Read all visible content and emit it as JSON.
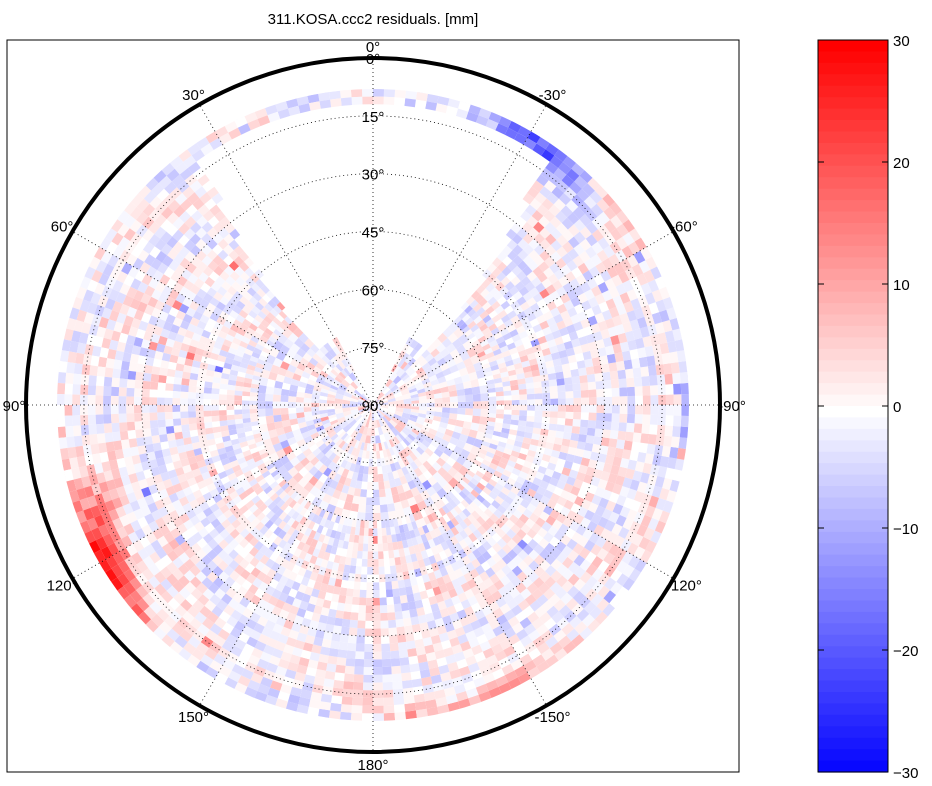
{
  "chart_data": {
    "type": "heatmap",
    "projection": "polar-skyplot",
    "title": "311.KOSA.ccc2 residuals. [mm]",
    "angular_axis": {
      "labels": [
        "0°",
        "30°",
        "60°",
        "90°",
        "120°",
        "150°",
        "180°",
        "-150°",
        "-120°",
        "-90°",
        "-60°",
        "-30°"
      ],
      "angles_deg": [
        0,
        30,
        60,
        90,
        120,
        150,
        180,
        210,
        240,
        270,
        300,
        330
      ]
    },
    "radial_axis": {
      "labels": [
        "0°",
        "15°",
        "30°",
        "45°",
        "60°",
        "75°",
        "90°"
      ],
      "elevation_deg": [
        0,
        15,
        30,
        45,
        60,
        75,
        90
      ]
    },
    "colorbar": {
      "min": -30,
      "max": 30,
      "ticks": [
        "30",
        "20",
        "10",
        "0",
        "−10",
        "−20",
        "−30"
      ],
      "tick_values": [
        30,
        20,
        10,
        0,
        -10,
        -20,
        -30
      ],
      "colormap": "blue-white-red",
      "low_color": "#0000ff",
      "mid_color": "#ffffff",
      "high_color": "#ff0000"
    },
    "coverage": "no data in the upper sector between roughly azimuth -40° and 40° above ~75° zenith; observed elsewhere",
    "residual_hotspots": [
      {
        "azimuth_deg": 125,
        "elevation_deg": 5,
        "value_mm": 25
      },
      {
        "azimuth_deg": 115,
        "elevation_deg": 12,
        "value_mm": 15
      },
      {
        "azimuth_deg": 200,
        "elevation_deg": 5,
        "value_mm": 18
      },
      {
        "azimuth_deg": 305,
        "elevation_deg": 3,
        "value_mm": 18
      },
      {
        "azimuth_deg": 275,
        "elevation_deg": 3,
        "value_mm": -20
      },
      {
        "azimuth_deg": 150,
        "elevation_deg": 3,
        "value_mm": -15
      },
      {
        "azimuth_deg": 328,
        "elevation_deg": 10,
        "value_mm": -18
      }
    ]
  }
}
